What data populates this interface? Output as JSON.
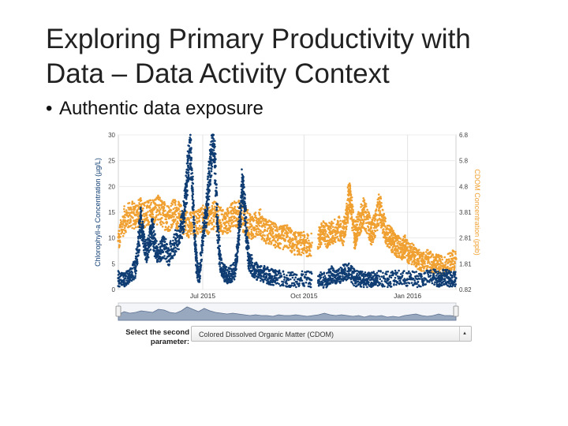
{
  "slide": {
    "title_line1": "Exploring Primary Productivity with",
    "title_line2": "Data – Data Activity Context",
    "bullet": "Authentic data exposure",
    "bullet_symbol": "•"
  },
  "colors": {
    "chlorophyll": "#0f3d73",
    "cdom": "#f0a030",
    "grid": "#d0d0d0",
    "navigator_fill": "#98a8bf",
    "navigator_line": "#5a6f8f"
  },
  "chart_data": {
    "type": "scatter",
    "title": "",
    "xlabel": "",
    "x_tick_labels": [
      "Jul 2015",
      "Oct 2015",
      "Jan 2016"
    ],
    "left_axis": {
      "label": "Chlorophyll-a Concentration (µg/L)",
      "ticks": [
        "0",
        "5",
        "10",
        "15",
        "20",
        "25",
        "30"
      ],
      "range": [
        0,
        30
      ]
    },
    "right_axis": {
      "label": "CDOM Concentration (ppb)",
      "ticks": [
        "0.82",
        "1.81",
        "2.81",
        "3.81",
        "4.8",
        "5.8",
        "6.8"
      ],
      "range": [
        0.82,
        6.8
      ]
    },
    "x_range_days": [
      0,
      300
    ],
    "x_tick_days": [
      75,
      165,
      257
    ],
    "data_gap_days": [
      172,
      177
    ],
    "series": [
      {
        "name": "Chlorophyll-a",
        "axis": "left",
        "points": [
          [
            0,
            2.2
          ],
          [
            5,
            1.8
          ],
          [
            10,
            2.4
          ],
          [
            15,
            4.0
          ],
          [
            18,
            9.0
          ],
          [
            20,
            14.0
          ],
          [
            22,
            10.0
          ],
          [
            25,
            7.0
          ],
          [
            28,
            9.5
          ],
          [
            30,
            12.0
          ],
          [
            33,
            8.0
          ],
          [
            36,
            7.0
          ],
          [
            40,
            8.5
          ],
          [
            45,
            6.5
          ],
          [
            50,
            9.0
          ],
          [
            55,
            10.5
          ],
          [
            58,
            14.0
          ],
          [
            60,
            18.0
          ],
          [
            62,
            24.0
          ],
          [
            64,
            27.0
          ],
          [
            66,
            19.0
          ],
          [
            68,
            9.0
          ],
          [
            70,
            4.0
          ],
          [
            72,
            2.5
          ],
          [
            75,
            10.0
          ],
          [
            78,
            14.0
          ],
          [
            80,
            20.0
          ],
          [
            82,
            25.0
          ],
          [
            84,
            30.0
          ],
          [
            86,
            24.0
          ],
          [
            88,
            13.0
          ],
          [
            90,
            6.0
          ],
          [
            93,
            3.5
          ],
          [
            96,
            2.8
          ],
          [
            100,
            3.0
          ],
          [
            104,
            3.8
          ],
          [
            106,
            8.0
          ],
          [
            108,
            14.0
          ],
          [
            110,
            20.0
          ],
          [
            112,
            17.0
          ],
          [
            114,
            10.0
          ],
          [
            116,
            6.0
          ],
          [
            120,
            4.0
          ],
          [
            125,
            3.2
          ],
          [
            130,
            3.0
          ],
          [
            135,
            2.5
          ],
          [
            140,
            2.2
          ],
          [
            150,
            2.0
          ],
          [
            160,
            2.0
          ],
          [
            170,
            2.0
          ],
          [
            178,
            1.8
          ],
          [
            185,
            1.9
          ],
          [
            190,
            3.0
          ],
          [
            195,
            2.2
          ],
          [
            200,
            3.2
          ],
          [
            205,
            3.8
          ],
          [
            210,
            2.2
          ],
          [
            215,
            2.0
          ],
          [
            220,
            1.8
          ],
          [
            225,
            2.0
          ],
          [
            230,
            2.2
          ],
          [
            240,
            2.0
          ],
          [
            250,
            2.2
          ],
          [
            260,
            2.0
          ],
          [
            270,
            2.0
          ],
          [
            280,
            2.5
          ],
          [
            285,
            2.0
          ],
          [
            290,
            2.6
          ],
          [
            295,
            2.0
          ],
          [
            300,
            2.2
          ]
        ]
      },
      {
        "name": "CDOM",
        "axis": "right",
        "points": [
          [
            0,
            2.7
          ],
          [
            5,
            3.5
          ],
          [
            10,
            3.7
          ],
          [
            15,
            3.7
          ],
          [
            20,
            3.8
          ],
          [
            25,
            3.7
          ],
          [
            30,
            3.8
          ],
          [
            35,
            3.9
          ],
          [
            40,
            3.7
          ],
          [
            45,
            3.6
          ],
          [
            50,
            3.8
          ],
          [
            55,
            3.6
          ],
          [
            60,
            3.4
          ],
          [
            65,
            3.3
          ],
          [
            70,
            3.4
          ],
          [
            75,
            3.6
          ],
          [
            80,
            3.4
          ],
          [
            85,
            3.7
          ],
          [
            90,
            3.5
          ],
          [
            95,
            3.4
          ],
          [
            100,
            3.6
          ],
          [
            105,
            3.8
          ],
          [
            110,
            3.6
          ],
          [
            115,
            3.4
          ],
          [
            120,
            3.2
          ],
          [
            125,
            3.5
          ],
          [
            130,
            3.1
          ],
          [
            135,
            3.0
          ],
          [
            140,
            2.9
          ],
          [
            145,
            2.8
          ],
          [
            150,
            2.9
          ],
          [
            155,
            2.6
          ],
          [
            160,
            2.6
          ],
          [
            165,
            2.6
          ],
          [
            170,
            2.5
          ],
          [
            178,
            2.8
          ],
          [
            182,
            3.0
          ],
          [
            186,
            2.9
          ],
          [
            190,
            3.0
          ],
          [
            195,
            3.2
          ],
          [
            200,
            3.0
          ],
          [
            203,
            3.6
          ],
          [
            205,
            4.5
          ],
          [
            207,
            4.0
          ],
          [
            210,
            2.8
          ],
          [
            212,
            3.2
          ],
          [
            215,
            3.5
          ],
          [
            218,
            3.8
          ],
          [
            222,
            3.4
          ],
          [
            225,
            3.0
          ],
          [
            228,
            3.3
          ],
          [
            232,
            4.0
          ],
          [
            235,
            3.5
          ],
          [
            238,
            3.0
          ],
          [
            242,
            2.8
          ],
          [
            245,
            2.6
          ],
          [
            248,
            2.5
          ],
          [
            252,
            2.4
          ],
          [
            255,
            2.5
          ],
          [
            258,
            2.2
          ],
          [
            262,
            2.2
          ],
          [
            266,
            2.0
          ],
          [
            270,
            1.9
          ],
          [
            275,
            2.0
          ],
          [
            280,
            1.8
          ],
          [
            285,
            1.8
          ],
          [
            290,
            1.7
          ],
          [
            295,
            1.9
          ],
          [
            300,
            2.0
          ]
        ]
      }
    ],
    "navigator_values": [
      0.35,
      0.55,
      0.45,
      0.5,
      0.6,
      0.55,
      0.5,
      0.7,
      0.65,
      0.5,
      0.45,
      0.6,
      0.85,
      0.7,
      0.55,
      0.75,
      0.6,
      0.5,
      0.45,
      0.4,
      0.45,
      0.4,
      0.35,
      0.3,
      0.35,
      0.3,
      0.3,
      0.25,
      0.35,
      0.3,
      0.3,
      0.35,
      0.3,
      0.25,
      0.3,
      0.35,
      0.45,
      0.35,
      0.3,
      0.35,
      0.3,
      0.25,
      0.3,
      0.2,
      0.3,
      0.25,
      0.3,
      0.2,
      0.25,
      0.2,
      0.3,
      0.35,
      0.4,
      0.3,
      0.25,
      0.3,
      0.4,
      0.3,
      0.3,
      0.25
    ]
  },
  "parameter_selector": {
    "label": "Select the second parameter:",
    "selected": "Colored Dissolved Organic Matter (CDOM)"
  }
}
